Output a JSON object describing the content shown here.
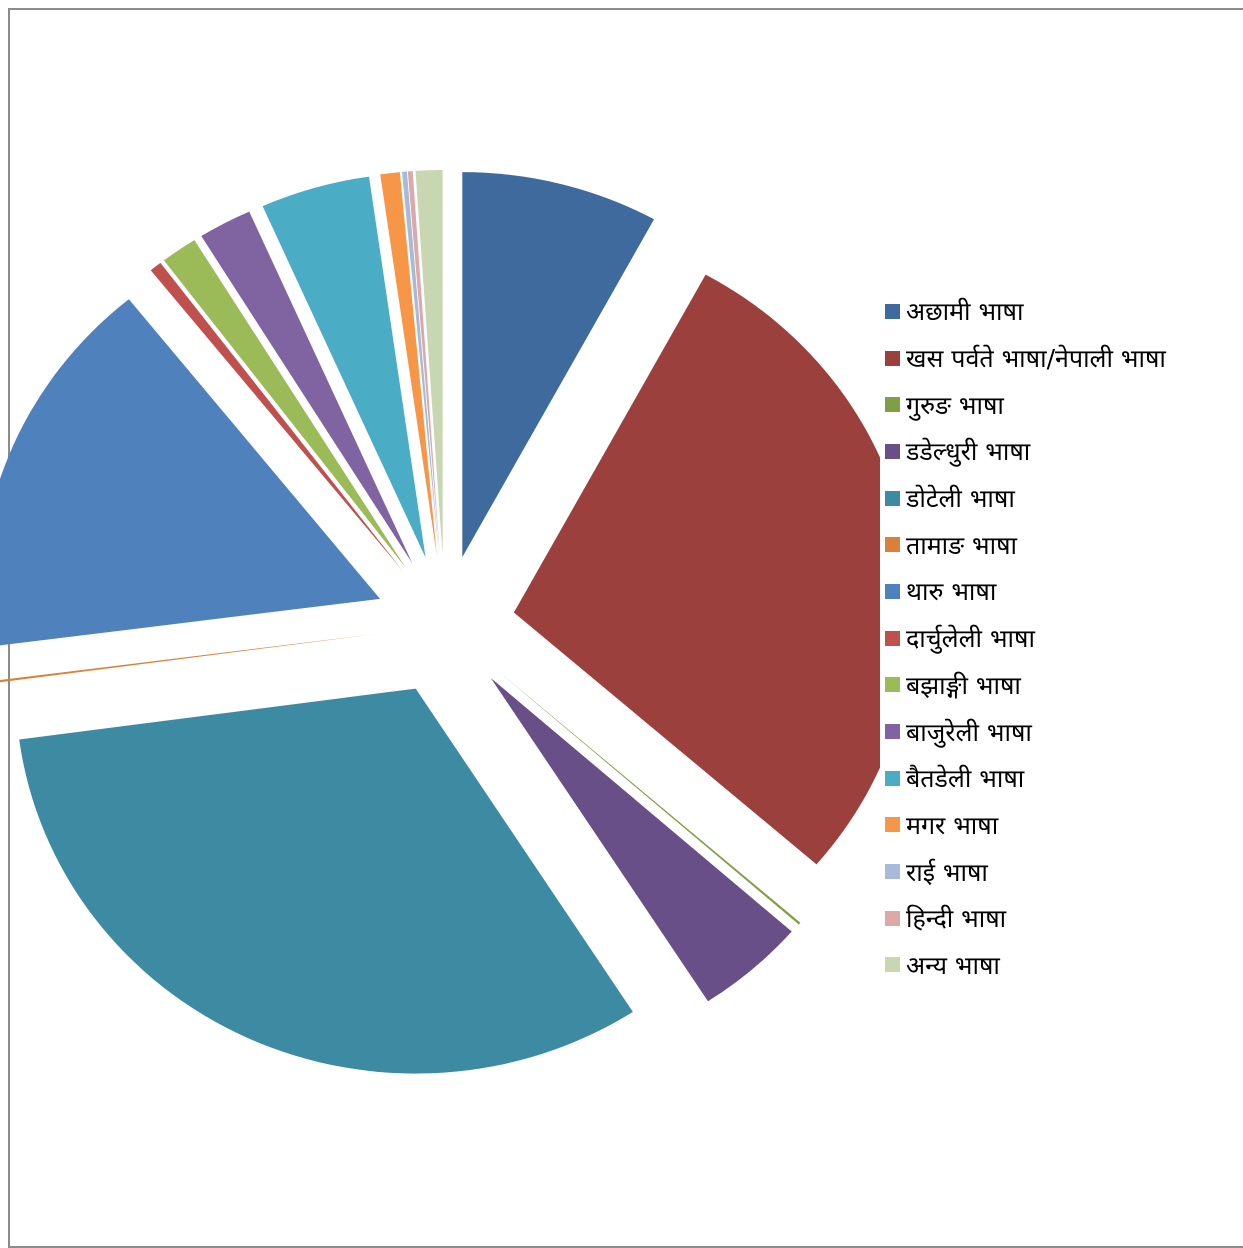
{
  "chart_data": {
    "type": "pie",
    "exploded": true,
    "categories": [
      "अछामी भाषा",
      "खस पर्वते भाषा/नेपाली भाषा",
      "गुरुङ भाषा",
      "डडेल्धुरी भाषा",
      "डोटेली भाषा",
      "तामाङ भाषा",
      "थारु भाषा",
      "दार्चुलेली भाषा",
      "बझाङ्गी भाषा",
      "बाजुरेली भाषा",
      "बैतडेली भाषा",
      "मगर भाषा",
      "राई भाषा",
      "हिन्दी भाषा",
      "अन्य भाषा"
    ],
    "values": [
      8.1,
      28.9,
      0.1,
      4.5,
      32.6,
      0.1,
      16.5,
      0.5,
      1.5,
      2.2,
      4.5,
      0.8,
      0.2,
      0.2,
      1.1
    ],
    "colors": [
      "#3F6A9E",
      "#9C403D",
      "#7F9E45",
      "#684F88",
      "#3D8BA3",
      "#D98138",
      "#4F81BD",
      "#C0504D",
      "#9BBB59",
      "#8064A2",
      "#4BACC6",
      "#F79646",
      "#A9B9D8",
      "#DCA9A8",
      "#C8D6B1"
    ],
    "legend_position": "right"
  }
}
